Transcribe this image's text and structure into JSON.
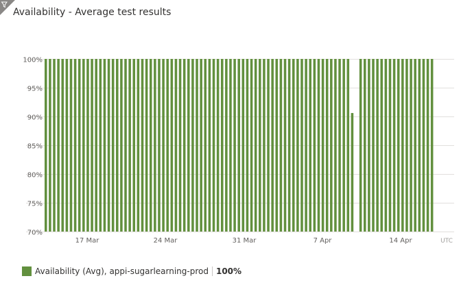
{
  "title": "Availability - Average test results",
  "icons": {
    "filter": "filter-icon"
  },
  "colors": {
    "bar": "#62903e",
    "grid": "#e1dfdd",
    "axis_text": "#605e5c",
    "utc_text": "#a19f9d"
  },
  "legend": {
    "label": "Availability (Avg), appi-sugarlearning-prod",
    "value": "100%"
  },
  "chart_data": {
    "type": "bar",
    "title": "Availability - Average test results",
    "xlabel": "",
    "ylabel": "",
    "ylim": [
      70,
      100
    ],
    "y_ticks": [
      100,
      95,
      90,
      85,
      80,
      75,
      70
    ],
    "y_tick_labels": [
      "100%",
      "95%",
      "90%",
      "85%",
      "80%",
      "75%",
      "70%"
    ],
    "x_tick_labels": [
      "17 Mar",
      "24 Mar",
      "31 Mar",
      "7 Apr",
      "14 Apr"
    ],
    "x_unit_label": "UTC",
    "grid": true,
    "legend_position": "bottom-left",
    "series": [
      {
        "name": "Availability (Avg), appi-sugarlearning-prod",
        "color": "#62903e",
        "values": [
          100,
          100,
          100,
          100,
          100,
          100,
          100,
          100,
          100,
          100,
          100,
          100,
          100,
          100,
          100,
          100,
          100,
          100,
          100,
          100,
          100,
          100,
          100,
          100,
          100,
          100,
          100,
          100,
          100,
          100,
          100,
          100,
          100,
          100,
          100,
          100,
          100,
          100,
          100,
          100,
          100,
          100,
          100,
          100,
          100,
          100,
          100,
          100,
          100,
          100,
          100,
          100,
          100,
          100,
          100,
          100,
          100,
          100,
          100,
          100,
          100,
          100,
          100,
          100,
          100,
          100,
          100,
          100,
          100,
          100,
          100,
          100,
          100,
          90.6,
          null,
          100,
          100,
          100,
          100,
          100,
          100,
          100,
          100,
          100,
          100,
          100,
          100,
          100,
          100,
          100,
          100,
          100,
          100
        ]
      }
    ]
  }
}
